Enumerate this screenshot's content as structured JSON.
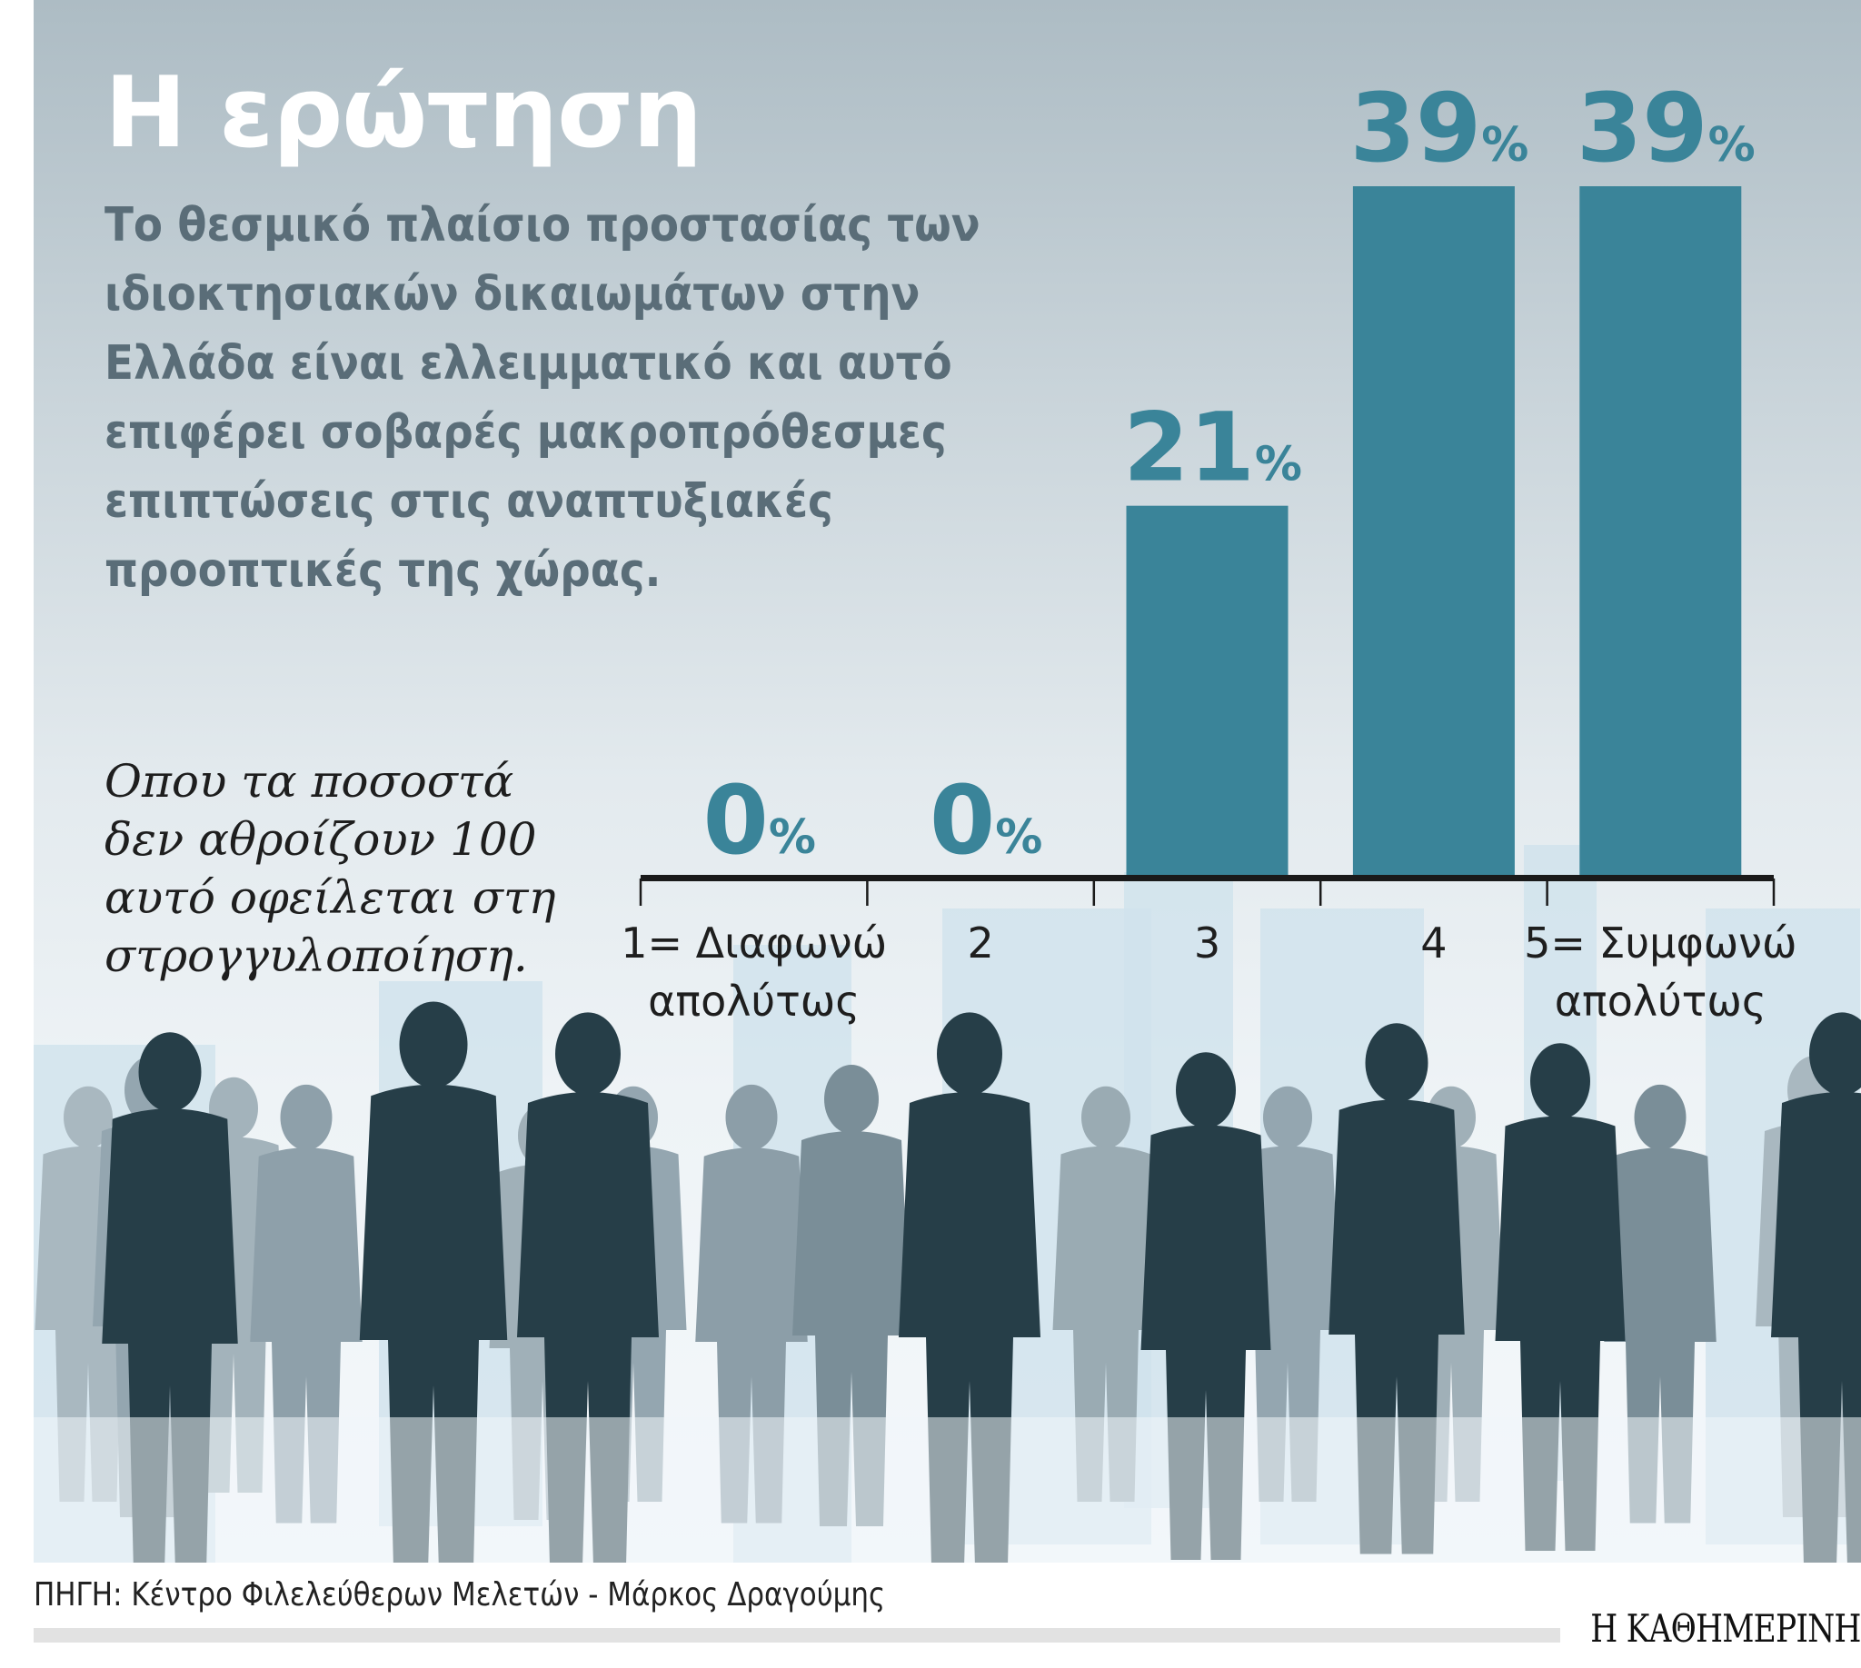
{
  "title": "Η ερώτηση",
  "question": "Το θεσμικό πλαίσιο προστασίας των ιδιοκτησιακών δικαιωμάτων στην Ελλάδα είναι ελλειμματικό και αυτό επιφέρει σοβαρές μακροπρόθεσμες επιπτώσεις στις αναπτυξιακές προοπτικές της χώρας.",
  "note": "Οπου τα ποσοστά δεν αθροίζουν 100 αυτό οφείλεται στη στρογγυλοποίηση.",
  "source": "ΠΗΓΗ: Κέντρο Φιλελεύθερων Μελετών - Μάρκος Δραγούμης",
  "logo": "Η ΚΑΘΗΜΕΡΙΝΗ",
  "colors": {
    "bar": "#3a8499",
    "label": "#3a8499",
    "axis": "#1a1a1a"
  },
  "chart_data": {
    "type": "bar",
    "categories": [
      "1= Διαφωνώ απολύτως",
      "2",
      "3",
      "4",
      "5= Συμφωνώ απολύτως"
    ],
    "values": [
      0,
      0,
      21,
      39,
      39
    ],
    "value_labels": [
      "0",
      "0",
      "21",
      "39",
      "39"
    ],
    "unit": "%",
    "ylim": [
      0,
      39
    ],
    "grid": false
  }
}
